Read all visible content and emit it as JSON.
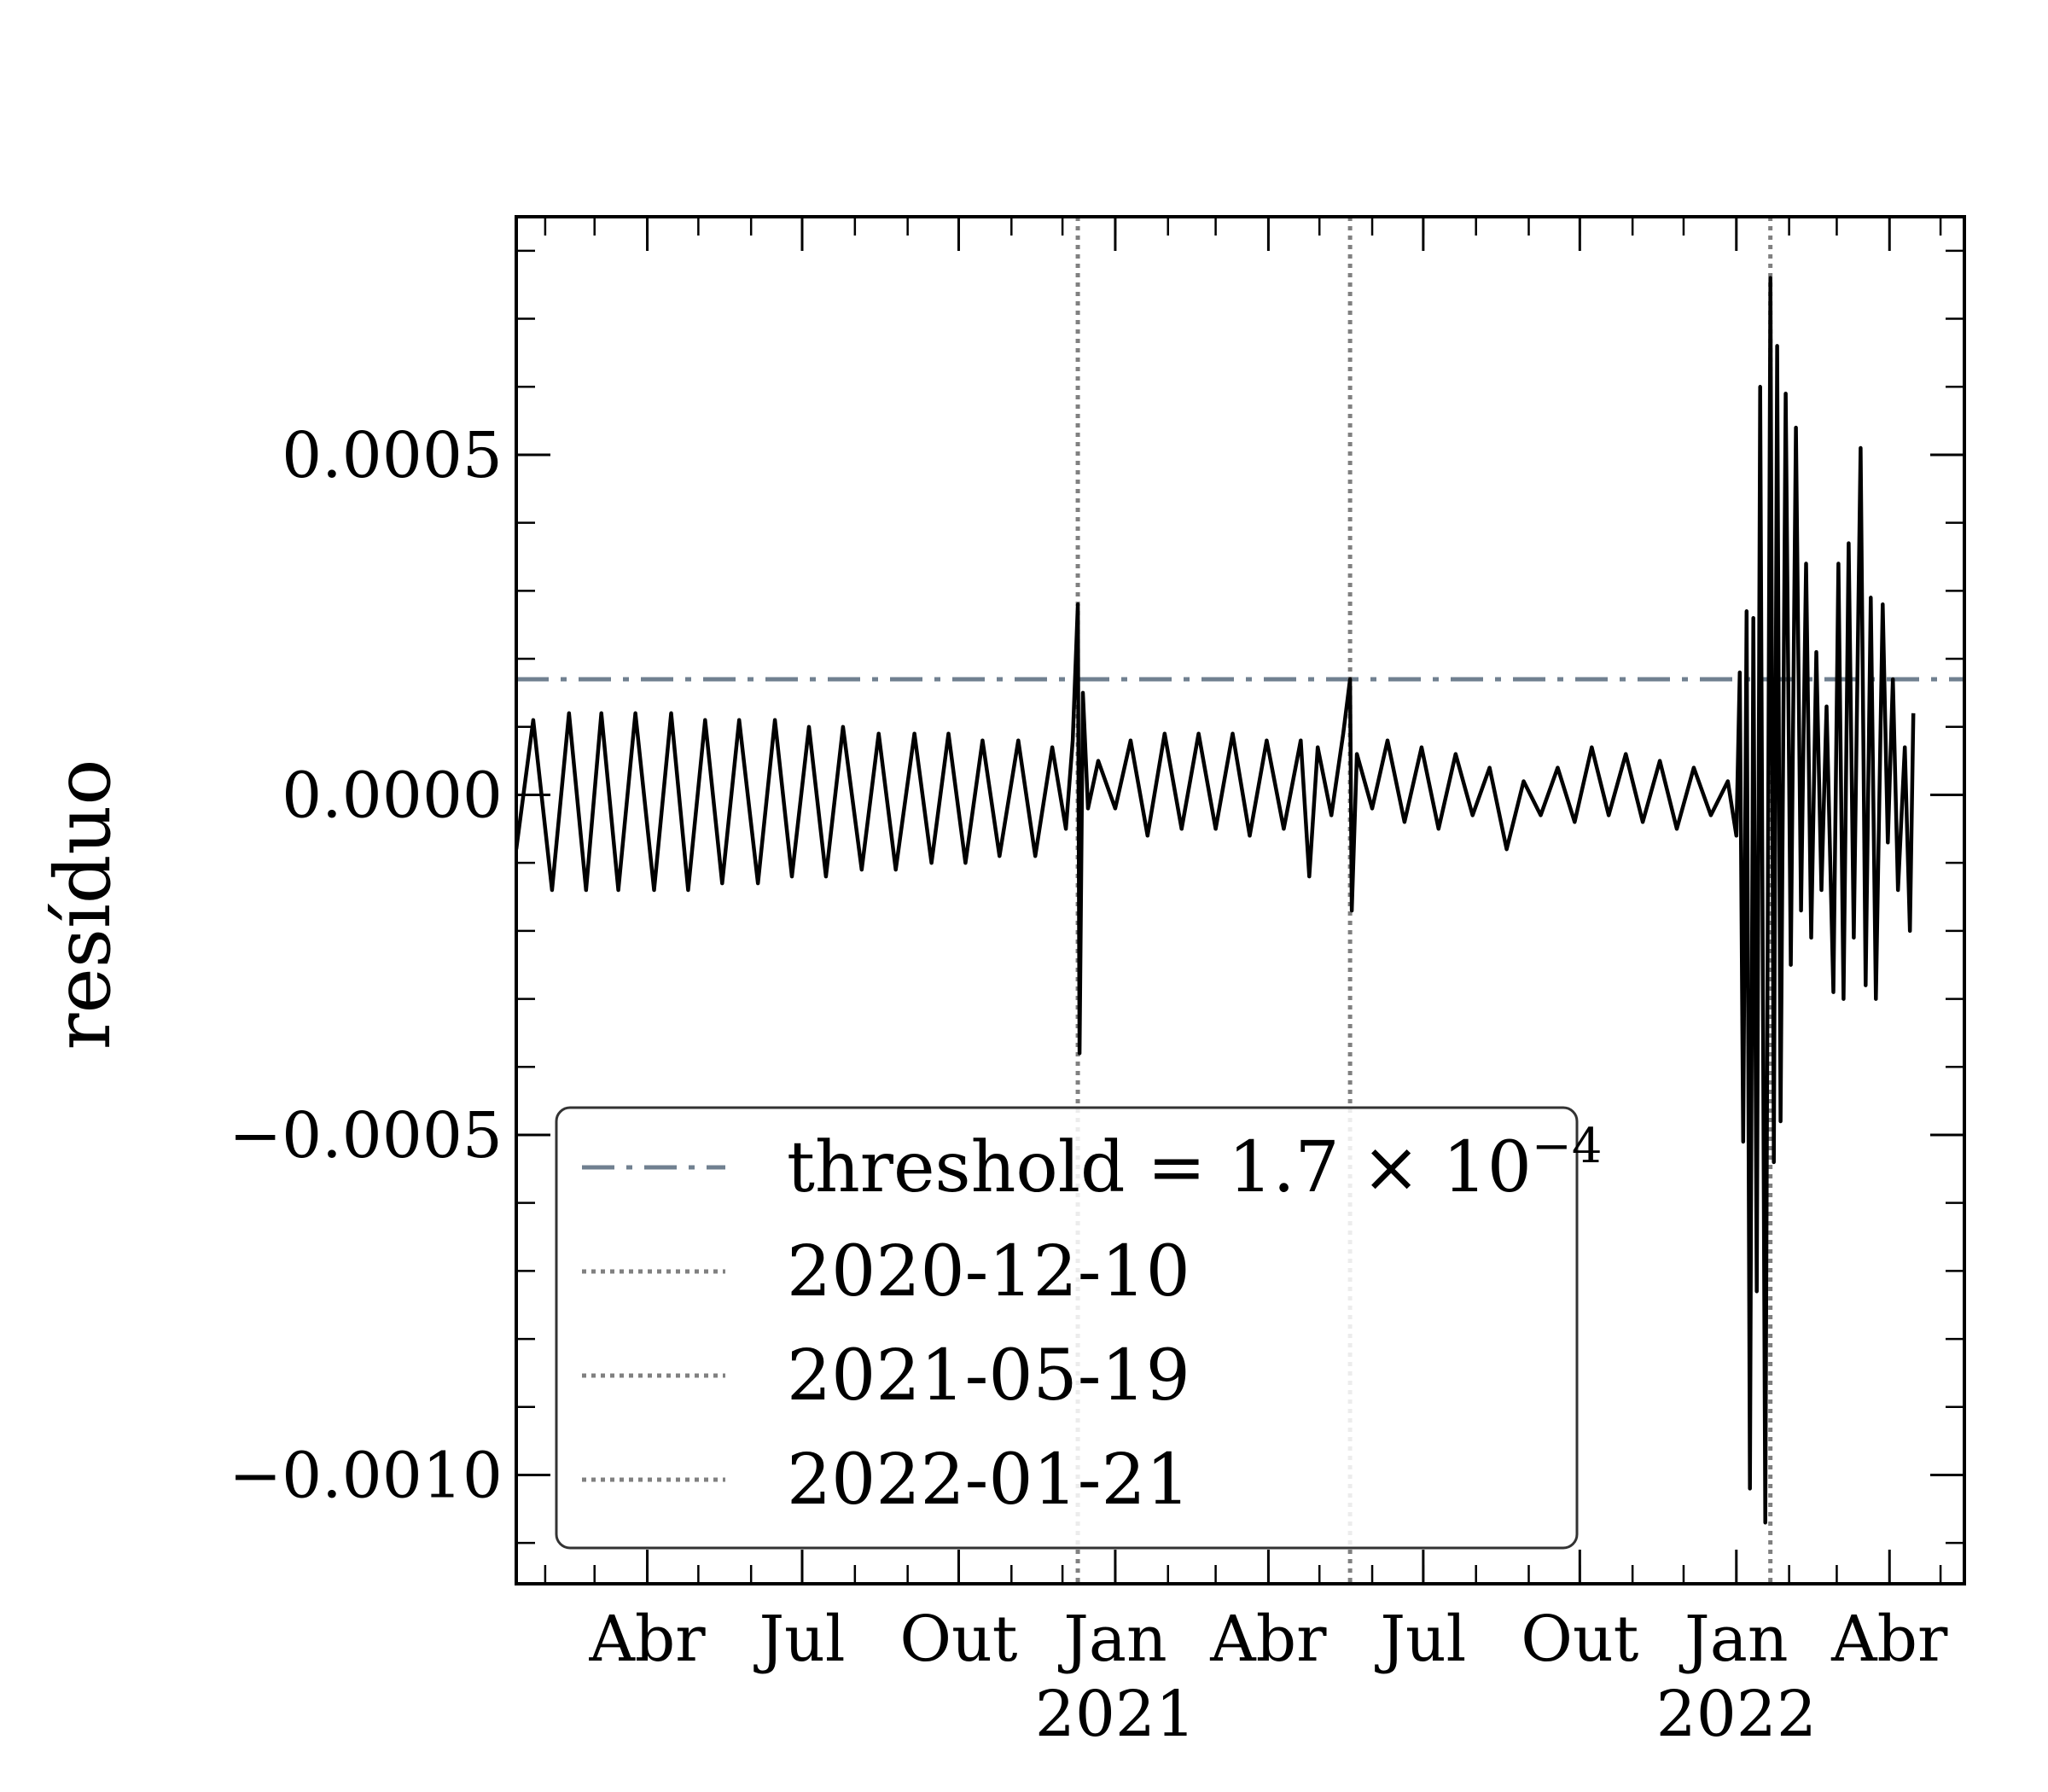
{
  "chart_data": {
    "type": "line",
    "ylabel": "resíduo",
    "ylim": [
      -0.00116,
      0.00085
    ],
    "xlim": [
      "2020-01-15",
      "2022-05-15"
    ],
    "grid": false,
    "legend_position": "lower-left",
    "y_ticks": [
      {
        "value": 0.0005,
        "label": "0.0005"
      },
      {
        "value": 0.0,
        "label": "0.0000"
      },
      {
        "value": -0.0005,
        "label": "−0.0005"
      },
      {
        "value": -0.001,
        "label": "−0.0010"
      }
    ],
    "x_ticks": [
      {
        "date": "2020-04-01",
        "label": "Abr"
      },
      {
        "date": "2020-07-01",
        "label": "Jul"
      },
      {
        "date": "2020-10-01",
        "label": "Out"
      },
      {
        "date": "2021-01-01",
        "label": "Jan",
        "year_label": "2021"
      },
      {
        "date": "2021-04-01",
        "label": "Abr"
      },
      {
        "date": "2021-07-01",
        "label": "Jul"
      },
      {
        "date": "2021-10-01",
        "label": "Out"
      },
      {
        "date": "2022-01-01",
        "label": "Jan",
        "year_label": "2022"
      },
      {
        "date": "2022-04-01",
        "label": "Abr"
      }
    ],
    "threshold": {
      "value": 0.00017,
      "label": "threshold = 1.7 × 10",
      "exponent": "−4",
      "color": "#708090"
    },
    "vlines": [
      {
        "date": "2020-12-10",
        "label": "2020-12-10"
      },
      {
        "date": "2021-05-19",
        "label": "2021-05-19"
      },
      {
        "date": "2022-01-21",
        "label": "2022-01-21"
      }
    ],
    "series": [
      {
        "color": "#000000",
        "points": [
          [
            "2020-01-15",
            -8e-05
          ],
          [
            "2020-01-25",
            0.00011
          ],
          [
            "2020-02-05",
            -0.00014
          ],
          [
            "2020-02-15",
            0.00012
          ],
          [
            "2020-02-25",
            -0.00014
          ],
          [
            "2020-03-05",
            0.00012
          ],
          [
            "2020-03-15",
            -0.00014
          ],
          [
            "2020-03-25",
            0.00012
          ],
          [
            "2020-04-05",
            -0.00014
          ],
          [
            "2020-04-15",
            0.00012
          ],
          [
            "2020-04-25",
            -0.00014
          ],
          [
            "2020-05-05",
            0.00011
          ],
          [
            "2020-05-15",
            -0.00013
          ],
          [
            "2020-05-25",
            0.00011
          ],
          [
            "2020-06-05",
            -0.00013
          ],
          [
            "2020-06-15",
            0.00011
          ],
          [
            "2020-06-25",
            -0.00012
          ],
          [
            "2020-07-05",
            0.0001
          ],
          [
            "2020-07-15",
            -0.00012
          ],
          [
            "2020-07-25",
            0.0001
          ],
          [
            "2020-08-05",
            -0.00011
          ],
          [
            "2020-08-15",
            9e-05
          ],
          [
            "2020-08-25",
            -0.00011
          ],
          [
            "2020-09-05",
            9e-05
          ],
          [
            "2020-09-15",
            -0.0001
          ],
          [
            "2020-09-25",
            9e-05
          ],
          [
            "2020-10-05",
            -0.0001
          ],
          [
            "2020-10-15",
            8e-05
          ],
          [
            "2020-10-25",
            -9e-05
          ],
          [
            "2020-11-05",
            8e-05
          ],
          [
            "2020-11-15",
            -9e-05
          ],
          [
            "2020-11-25",
            7e-05
          ],
          [
            "2020-12-03",
            -5e-05
          ],
          [
            "2020-12-07",
            8e-05
          ],
          [
            "2020-12-10",
            0.00028
          ],
          [
            "2020-12-11",
            -0.00038
          ],
          [
            "2020-12-13",
            0.00015
          ],
          [
            "2020-12-16",
            -2e-05
          ],
          [
            "2020-12-22",
            5e-05
          ],
          [
            "2021-01-01",
            -2e-05
          ],
          [
            "2021-01-10",
            8e-05
          ],
          [
            "2021-01-20",
            -6e-05
          ],
          [
            "2021-01-30",
            9e-05
          ],
          [
            "2021-02-09",
            -5e-05
          ],
          [
            "2021-02-19",
            9e-05
          ],
          [
            "2021-03-01",
            -5e-05
          ],
          [
            "2021-03-11",
            9e-05
          ],
          [
            "2021-03-21",
            -6e-05
          ],
          [
            "2021-03-31",
            8e-05
          ],
          [
            "2021-04-10",
            -5e-05
          ],
          [
            "2021-04-20",
            8e-05
          ],
          [
            "2021-04-25",
            -0.00012
          ],
          [
            "2021-04-30",
            7e-05
          ],
          [
            "2021-05-08",
            -3e-05
          ],
          [
            "2021-05-15",
            9e-05
          ],
          [
            "2021-05-19",
            0.00017
          ],
          [
            "2021-05-20",
            -0.00017
          ],
          [
            "2021-05-23",
            6e-05
          ],
          [
            "2021-06-01",
            -2e-05
          ],
          [
            "2021-06-10",
            8e-05
          ],
          [
            "2021-06-20",
            -4e-05
          ],
          [
            "2021-06-30",
            7e-05
          ],
          [
            "2021-07-10",
            -5e-05
          ],
          [
            "2021-07-20",
            6e-05
          ],
          [
            "2021-07-30",
            -3e-05
          ],
          [
            "2021-08-09",
            4e-05
          ],
          [
            "2021-08-19",
            -8e-05
          ],
          [
            "2021-08-29",
            2e-05
          ],
          [
            "2021-09-08",
            -3e-05
          ],
          [
            "2021-09-18",
            4e-05
          ],
          [
            "2021-09-28",
            -4e-05
          ],
          [
            "2021-10-08",
            7e-05
          ],
          [
            "2021-10-18",
            -3e-05
          ],
          [
            "2021-10-28",
            6e-05
          ],
          [
            "2021-11-07",
            -4e-05
          ],
          [
            "2021-11-17",
            5e-05
          ],
          [
            "2021-11-27",
            -5e-05
          ],
          [
            "2021-12-07",
            4e-05
          ],
          [
            "2021-12-17",
            -3e-05
          ],
          [
            "2021-12-27",
            2e-05
          ],
          [
            "2022-01-01",
            -6e-05
          ],
          [
            "2022-01-03",
            0.00018
          ],
          [
            "2022-01-05",
            -0.00051
          ],
          [
            "2022-01-07",
            0.00027
          ],
          [
            "2022-01-09",
            -0.00102
          ],
          [
            "2022-01-11",
            0.00026
          ],
          [
            "2022-01-13",
            -0.00073
          ],
          [
            "2022-01-15",
            0.0006
          ],
          [
            "2022-01-18",
            -0.00107
          ],
          [
            "2022-01-21",
            0.00076
          ],
          [
            "2022-01-23",
            -0.00054
          ],
          [
            "2022-01-25",
            0.00066
          ],
          [
            "2022-01-27",
            -0.00048
          ],
          [
            "2022-01-30",
            0.00059
          ],
          [
            "2022-02-02",
            -0.00025
          ],
          [
            "2022-02-05",
            0.00054
          ],
          [
            "2022-02-08",
            -0.00017
          ],
          [
            "2022-02-11",
            0.00034
          ],
          [
            "2022-02-14",
            -0.00021
          ],
          [
            "2022-02-17",
            0.00021
          ],
          [
            "2022-02-20",
            -0.00014
          ],
          [
            "2022-02-23",
            0.00013
          ],
          [
            "2022-02-27",
            -0.00029
          ],
          [
            "2022-03-02",
            0.00034
          ],
          [
            "2022-03-05",
            -0.0003
          ],
          [
            "2022-03-08",
            0.00037
          ],
          [
            "2022-03-11",
            -0.00021
          ],
          [
            "2022-03-15",
            0.00051
          ],
          [
            "2022-03-18",
            -0.00028
          ],
          [
            "2022-03-21",
            0.00029
          ],
          [
            "2022-03-24",
            -0.0003
          ],
          [
            "2022-03-28",
            0.00028
          ],
          [
            "2022-03-31",
            -7e-05
          ],
          [
            "2022-04-03",
            0.00017
          ],
          [
            "2022-04-06",
            -0.00014
          ],
          [
            "2022-04-10",
            7e-05
          ],
          [
            "2022-04-13",
            -0.0002
          ],
          [
            "2022-04-15",
            0.00012
          ]
        ]
      }
    ]
  }
}
